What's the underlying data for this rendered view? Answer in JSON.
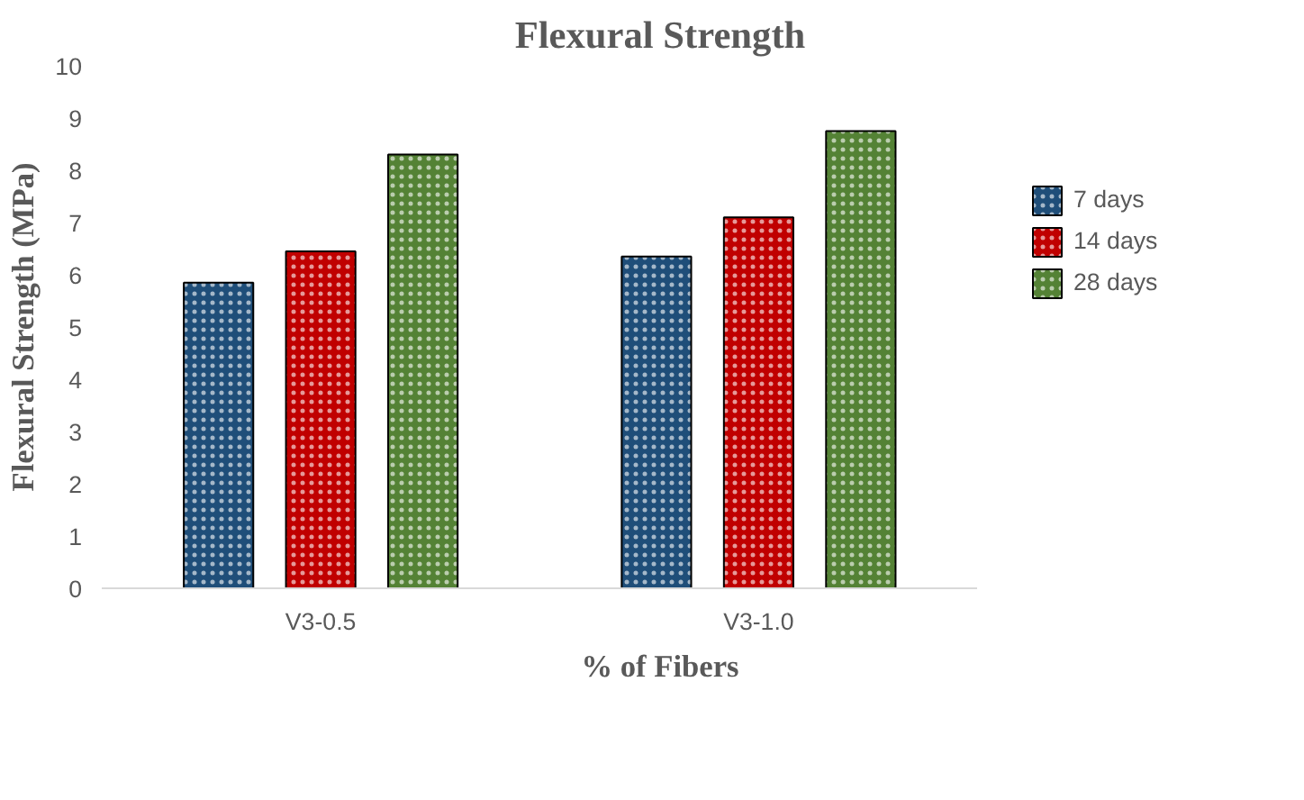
{
  "chart_data": {
    "type": "bar",
    "title": "Flexural Strength",
    "xlabel": "% of Fibers",
    "ylabel": "Flexural Strength (MPa)",
    "categories": [
      "V3-0.5",
      "V3-1.0"
    ],
    "series": [
      {
        "name": "7 days",
        "color": "#1f4e79",
        "values": [
          5.85,
          6.35
        ]
      },
      {
        "name": "14 days",
        "color": "#c00000",
        "values": [
          6.45,
          7.1
        ]
      },
      {
        "name": "28 days",
        "color": "#548235",
        "values": [
          8.3,
          8.75
        ]
      }
    ],
    "ylim": [
      0,
      10
    ],
    "yticks": [
      0,
      1,
      2,
      3,
      4,
      5,
      6,
      7,
      8,
      9,
      10
    ],
    "grid": false,
    "legend": "right"
  }
}
